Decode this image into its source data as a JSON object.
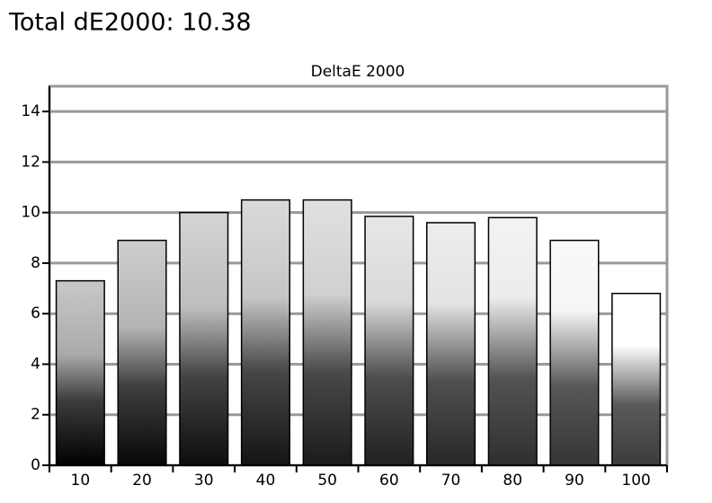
{
  "chart_data": {
    "type": "bar",
    "title": "Total dE2000: 10.38",
    "subtitle": "DeltaE 2000",
    "categories": [
      "10",
      "20",
      "30",
      "40",
      "50",
      "60",
      "70",
      "80",
      "90",
      "100"
    ],
    "values": [
      7.3,
      8.9,
      10.0,
      10.5,
      10.5,
      9.85,
      9.6,
      9.8,
      8.9,
      6.8
    ],
    "ylim": [
      0,
      15
    ],
    "yticks": [
      0,
      2,
      4,
      6,
      8,
      10,
      12,
      14
    ],
    "grid": true
  }
}
